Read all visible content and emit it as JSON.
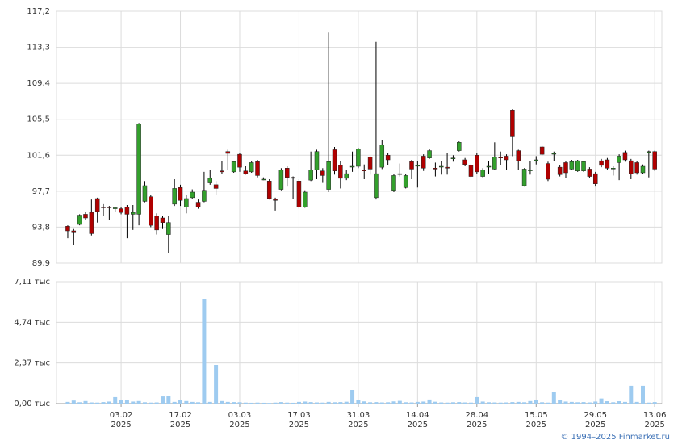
{
  "chart_data": {
    "type": "candlestick",
    "open": [
      93.9,
      93.4,
      94.1,
      95.2,
      95.4,
      96.9,
      96.0,
      96.0,
      95.8,
      95.8,
      96.0,
      95.2,
      95.2,
      96.6,
      97.1,
      95.0,
      94.8,
      93.0,
      96.3,
      98.1,
      96.0,
      97.0,
      96.5,
      96.6,
      98.6,
      98.4,
      99.9,
      102.0,
      99.8,
      101.7,
      99.9,
      99.8,
      100.9,
      99.0,
      98.8,
      96.8,
      97.9,
      100.2,
      99.2,
      98.8,
      96.0,
      98.9,
      100.0,
      99.9,
      97.9,
      102.2,
      100.5,
      99.1,
      100.4,
      100.4,
      100.0,
      101.4,
      97.0,
      100.3,
      101.6,
      97.8,
      99.6,
      98.1,
      100.9,
      100.5,
      101.5,
      101.3,
      100.2,
      100.4,
      100.3,
      101.3,
      102.1,
      101.1,
      100.5,
      101.6,
      99.3,
      100.4,
      100.1,
      101.4,
      101.5,
      106.5,
      102.1,
      98.3,
      100.0,
      101.1,
      102.5,
      100.7,
      101.8,
      100.3,
      100.8,
      100.1,
      99.9,
      99.9,
      100.1,
      99.6,
      101.0,
      101.1,
      100.2,
      100.8,
      101.9,
      101.0,
      100.8,
      99.7,
      102.0,
      102.0
    ],
    "high": [
      94.0,
      93.6,
      95.2,
      95.5,
      96.8,
      97.0,
      96.3,
      96.1,
      96.0,
      96.0,
      96.2,
      96.2,
      105.1,
      98.8,
      97.3,
      95.3,
      95.0,
      95.0,
      99.0,
      98.4,
      97.3,
      97.9,
      96.8,
      99.8,
      100.0,
      98.8,
      101.0,
      102.2,
      101.0,
      101.8,
      100.4,
      101.0,
      101.1,
      99.2,
      99.0,
      97.0,
      100.2,
      100.4,
      99.3,
      99.0,
      97.8,
      102.0,
      102.2,
      100.2,
      114.9,
      102.5,
      101.0,
      100.0,
      102.0,
      102.4,
      100.6,
      101.5,
      113.9,
      103.2,
      101.8,
      99.6,
      100.7,
      99.6,
      101.1,
      101.0,
      101.7,
      102.3,
      100.8,
      101.0,
      101.8,
      101.6,
      103.1,
      101.3,
      100.7,
      101.8,
      100.2,
      101.0,
      103.0,
      102.0,
      101.7,
      106.6,
      102.2,
      100.2,
      101.0,
      101.5,
      102.6,
      100.9,
      102.0,
      100.5,
      101.0,
      101.1,
      101.1,
      101.0,
      100.3,
      99.8,
      101.2,
      101.3,
      100.4,
      101.7,
      102.1,
      101.2,
      101.0,
      100.6,
      102.1,
      102.1
    ],
    "low": [
      92.6,
      91.9,
      94.0,
      94.6,
      92.9,
      94.3,
      95.0,
      94.6,
      95.5,
      95.2,
      92.6,
      93.5,
      94.0,
      96.5,
      93.8,
      93.0,
      93.6,
      91.0,
      96.1,
      96.1,
      95.3,
      96.9,
      95.8,
      96.5,
      98.4,
      97.3,
      99.6,
      100.0,
      99.7,
      99.8,
      99.5,
      99.7,
      99.2,
      98.9,
      96.8,
      95.6,
      97.8,
      98.2,
      96.9,
      95.8,
      95.9,
      98.8,
      99.0,
      98.6,
      97.6,
      99.5,
      98.0,
      98.9,
      99.8,
      100.2,
      99.0,
      99.5,
      96.8,
      100.1,
      100.5,
      97.6,
      99.3,
      98.0,
      99.0,
      98.1,
      99.9,
      101.2,
      99.3,
      99.5,
      99.5,
      100.9,
      102.0,
      100.4,
      99.1,
      99.6,
      99.2,
      99.6,
      100.0,
      100.5,
      100.0,
      101.5,
      100.0,
      98.2,
      99.5,
      100.6,
      101.6,
      98.8,
      101.0,
      99.3,
      99.1,
      100.0,
      99.8,
      99.8,
      99.1,
      98.2,
      100.3,
      100.0,
      99.4,
      98.9,
      100.9,
      99.0,
      99.5,
      99.6,
      99.2,
      99.9
    ],
    "close": [
      93.4,
      93.2,
      95.1,
      94.8,
      93.1,
      95.5,
      95.9,
      95.9,
      95.9,
      95.4,
      95.2,
      95.4,
      105.0,
      98.3,
      94.0,
      93.5,
      94.3,
      94.3,
      98.0,
      96.7,
      96.9,
      97.6,
      96.0,
      97.8,
      99.1,
      98.0,
      99.8,
      101.8,
      100.9,
      100.3,
      99.6,
      100.8,
      99.4,
      99.0,
      96.9,
      96.7,
      100.0,
      99.2,
      99.1,
      96.0,
      97.6,
      100.0,
      102.0,
      99.4,
      100.9,
      99.9,
      99.1,
      99.6,
      100.4,
      102.3,
      99.9,
      100.1,
      99.6,
      102.7,
      101.1,
      99.4,
      99.6,
      99.4,
      100.1,
      100.5,
      100.2,
      102.1,
      100.1,
      100.4,
      100.2,
      101.3,
      103.0,
      100.6,
      99.3,
      99.8,
      100.0,
      100.4,
      101.4,
      101.3,
      101.1,
      103.6,
      101.0,
      100.1,
      100.0,
      101.1,
      101.7,
      99.0,
      101.8,
      99.5,
      99.7,
      100.9,
      101.0,
      100.9,
      99.3,
      98.5,
      100.5,
      100.2,
      100.2,
      101.5,
      101.1,
      99.6,
      99.7,
      100.4,
      102.0,
      100.1
    ],
    "volume": [
      100,
      180,
      80,
      150,
      70,
      60,
      90,
      120,
      380,
      230,
      200,
      120,
      150,
      80,
      60,
      70,
      420,
      470,
      100,
      200,
      150,
      100,
      80,
      6080,
      100,
      2260,
      150,
      100,
      90,
      80,
      60,
      50,
      60,
      50,
      40,
      60,
      90,
      60,
      50,
      100,
      120,
      90,
      70,
      60,
      100,
      80,
      90,
      110,
      800,
      220,
      130,
      80,
      90,
      70,
      80,
      130,
      160,
      80,
      70,
      100,
      120,
      240,
      110,
      70,
      60,
      80,
      90,
      70,
      60,
      380,
      120,
      80,
      70,
      60,
      70,
      90,
      100,
      80,
      150,
      200,
      80,
      60,
      660,
      200,
      120,
      100,
      80,
      90,
      70,
      120,
      300,
      140,
      80,
      140,
      100,
      1040,
      100,
      1040,
      60,
      90
    ],
    "up_color": "#33a02c",
    "down_color": "#b00000",
    "wick_color": "#000000",
    "volume_color": "#9ecbf0",
    "xlim": [
      -1.9,
      100.2
    ],
    "xticks": [
      {
        "value": 9,
        "label": "03.02",
        "year": "2025"
      },
      {
        "value": 19,
        "label": "17.02",
        "year": "2025"
      },
      {
        "value": 29,
        "label": "03.03",
        "year": "2025"
      },
      {
        "value": 39,
        "label": "17.03",
        "year": "2025"
      },
      {
        "value": 49,
        "label": "31.03",
        "year": "2025"
      },
      {
        "value": 59,
        "label": "14.04",
        "year": "2025"
      },
      {
        "value": 69,
        "label": "28.04",
        "year": "2025"
      },
      {
        "value": 79,
        "label": "15.05",
        "year": "2025"
      },
      {
        "value": 89,
        "label": "29.05",
        "year": "2025"
      },
      {
        "value": 99,
        "label": "13.06",
        "year": "2025"
      }
    ],
    "ylim": [
      89.9,
      117.2
    ],
    "yticks": [
      {
        "value": 89.9,
        "label": "89,9"
      },
      {
        "value": 93.8,
        "label": "93,8"
      },
      {
        "value": 97.7,
        "label": "97,7"
      },
      {
        "value": 101.6,
        "label": "101,6"
      },
      {
        "value": 105.5,
        "label": "105,5"
      },
      {
        "value": 109.4,
        "label": "109,4"
      },
      {
        "value": 113.3,
        "label": "113,3"
      },
      {
        "value": 117.2,
        "label": "117,2"
      }
    ],
    "volume_ylim": [
      0,
      7110
    ],
    "volume_yticks": [
      {
        "value": 0,
        "label": "0,00 тыс"
      },
      {
        "value": 2370,
        "label": "2,37 тыс"
      },
      {
        "value": 4740,
        "label": "4,74 тыс"
      },
      {
        "value": 7110,
        "label": "7,11 тыс"
      }
    ],
    "grid": true
  },
  "footer": "© 1994–2025 Finmarket.ru"
}
